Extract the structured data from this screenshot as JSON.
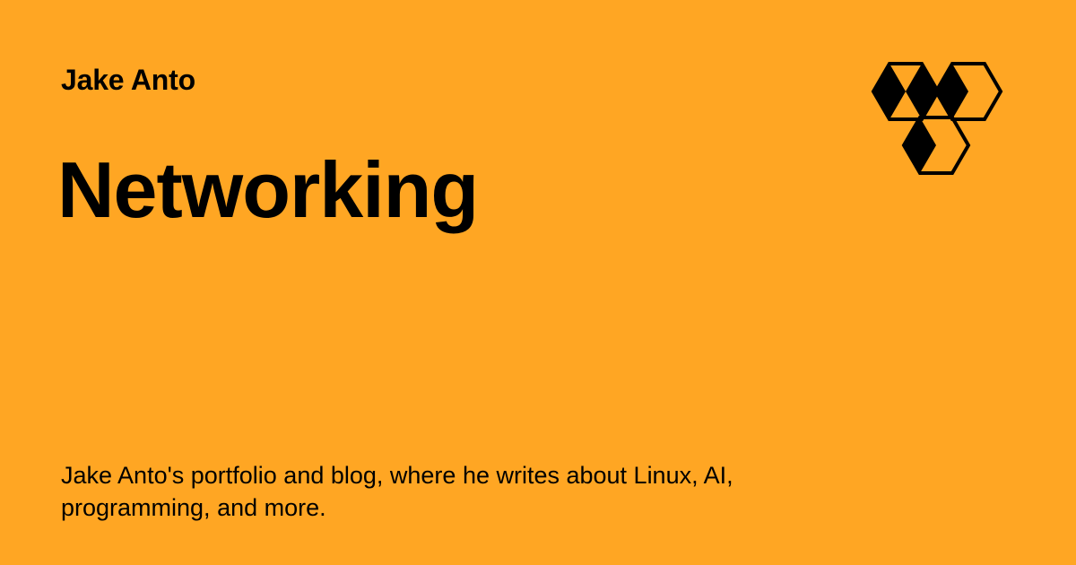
{
  "card": {
    "author": "Jake Anto",
    "title": "Networking",
    "description": "Jake Anto's portfolio and blog, where he writes about Linux, AI, programming, and more.",
    "logo_icon": "hexagon-logo-icon",
    "background_color": "#FFA623",
    "text_color": "#000000"
  }
}
